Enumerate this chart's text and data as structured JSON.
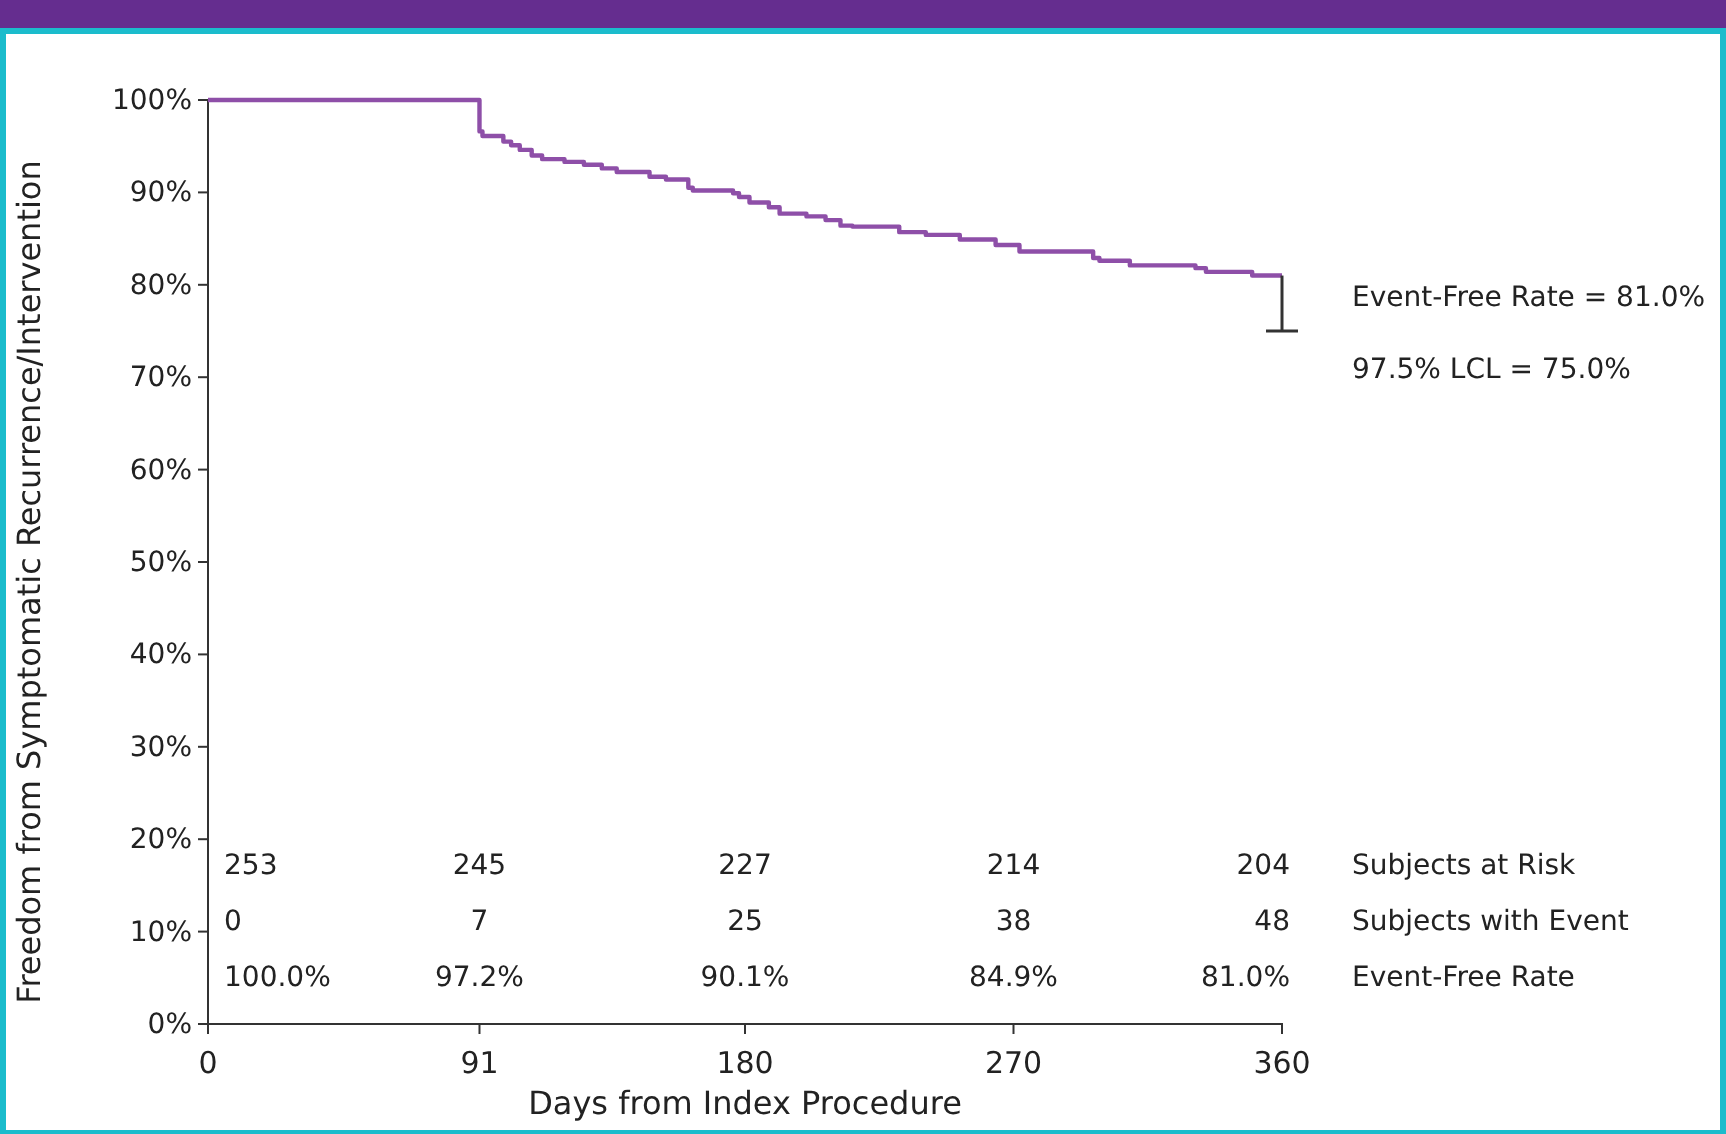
{
  "chart_data": {
    "type": "step",
    "xlabel": "Days from Index Procedure",
    "ylabel": "Freedom from Symptomatic Recurrence/Intervention",
    "xlim": [
      0,
      360
    ],
    "xticks": [
      0,
      91,
      180,
      270,
      360
    ],
    "ylim": [
      0,
      100
    ],
    "yticks": [
      {
        "value": 0,
        "label": "0%"
      },
      {
        "value": 10,
        "label": "10%"
      },
      {
        "value": 20,
        "label": "20%"
      },
      {
        "value": 30,
        "label": "30%"
      },
      {
        "value": 40,
        "label": "40%"
      },
      {
        "value": 50,
        "label": "50%"
      },
      {
        "value": 60,
        "label": "60%"
      },
      {
        "value": 70,
        "label": "70%"
      },
      {
        "value": 80,
        "label": "80%"
      },
      {
        "value": 90,
        "label": "90%"
      },
      {
        "value": 100,
        "label": "100%"
      }
    ],
    "grid": false,
    "marker": "none",
    "line_style": "solid",
    "series": [
      {
        "color": "#8e4fa8",
        "x": [
          0,
          91,
          92,
          99,
          101.6,
          104.5,
          108.5,
          112,
          119.5,
          126,
          132,
          137,
          148,
          153.5,
          161,
          162.5,
          176,
          178,
          181.5,
          188,
          191.6,
          200.6,
          207,
          212,
          216,
          231.7,
          240.6,
          252,
          264,
          272,
          296.7,
          298.8,
          309,
          331,
          334.5,
          350,
          360
        ],
        "values": [
          100,
          96.6,
          96.1,
          95.5,
          95.1,
          94.6,
          94.0,
          93.6,
          93.3,
          93.0,
          92.6,
          92.2,
          91.7,
          91.4,
          90.5,
          90.2,
          89.9,
          89.5,
          88.9,
          88.4,
          87.7,
          87.4,
          87.0,
          86.4,
          86.3,
          85.7,
          85.4,
          84.9,
          84.3,
          83.6,
          82.9,
          82.6,
          82.1,
          81.8,
          81.4,
          81.0,
          81.0
        ],
        "errors": [
          null,
          null,
          null,
          null,
          null,
          null,
          null,
          null,
          null,
          null,
          null,
          null,
          null,
          null,
          null,
          null,
          null,
          null,
          null,
          null,
          null,
          null,
          null,
          null,
          null,
          null,
          null,
          null,
          null,
          null,
          null,
          null,
          null,
          null,
          null,
          null,
          [
            75.0,
            81.0
          ]
        ]
      }
    ],
    "annotations": [
      "253",
      "245",
      "227",
      "214",
      "204",
      "Subjects at Risk",
      "0",
      "7",
      "25",
      "38",
      "48",
      "Subjects with Event",
      "100.0%",
      "97.2%",
      "90.1%",
      "84.9%",
      "81.0%",
      "Event-Free Rate",
      "Event-Free Rate = 81.0%",
      "97.5% LCL = 75.0%"
    ]
  }
}
